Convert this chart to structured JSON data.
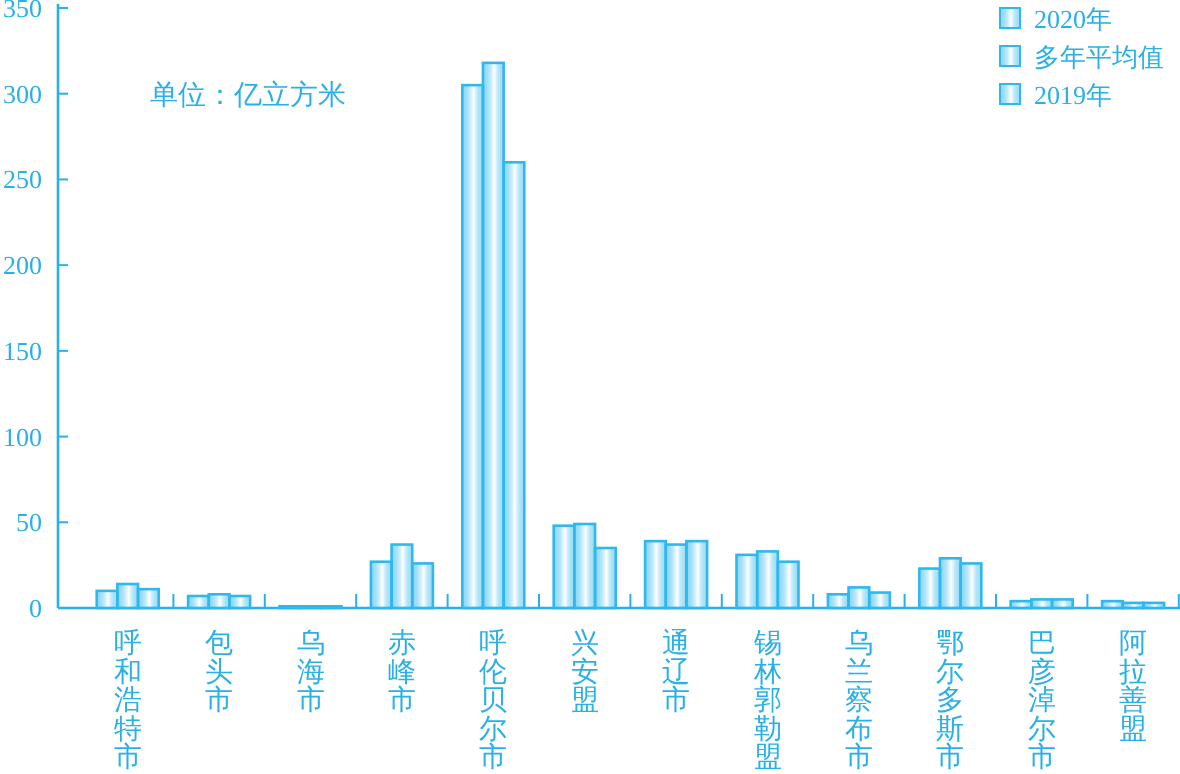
{
  "chart_data": {
    "type": "bar",
    "categories": [
      "呼和浩特市",
      "包头市",
      "乌海市",
      "赤峰市",
      "呼伦贝尔市",
      "兴安盟",
      "通辽市",
      "锡林郭勒盟",
      "乌兰察布市",
      "鄂尔多斯市",
      "巴彦淖尔市",
      "阿拉善盟"
    ],
    "series": [
      {
        "name": "2020年",
        "color": "#2fb8ec",
        "values": [
          10,
          7,
          1,
          27,
          305,
          48,
          39,
          31,
          8,
          23,
          4,
          4
        ]
      },
      {
        "name": "多年平均值",
        "color": "#2fb8ec",
        "values": [
          14,
          8,
          1,
          37,
          318,
          49,
          37,
          33,
          12,
          29,
          5,
          3
        ]
      },
      {
        "name": "2019年",
        "color": "#2fb8ec",
        "values": [
          11,
          7,
          1,
          26,
          260,
          35,
          39,
          27,
          9,
          26,
          5,
          3
        ]
      }
    ],
    "ylim": [
      0,
      350
    ],
    "yticks": [
      0,
      50,
      100,
      150,
      200,
      250,
      300,
      350
    ],
    "legend": "top right",
    "annotations": [
      "单位：亿立方米"
    ]
  }
}
